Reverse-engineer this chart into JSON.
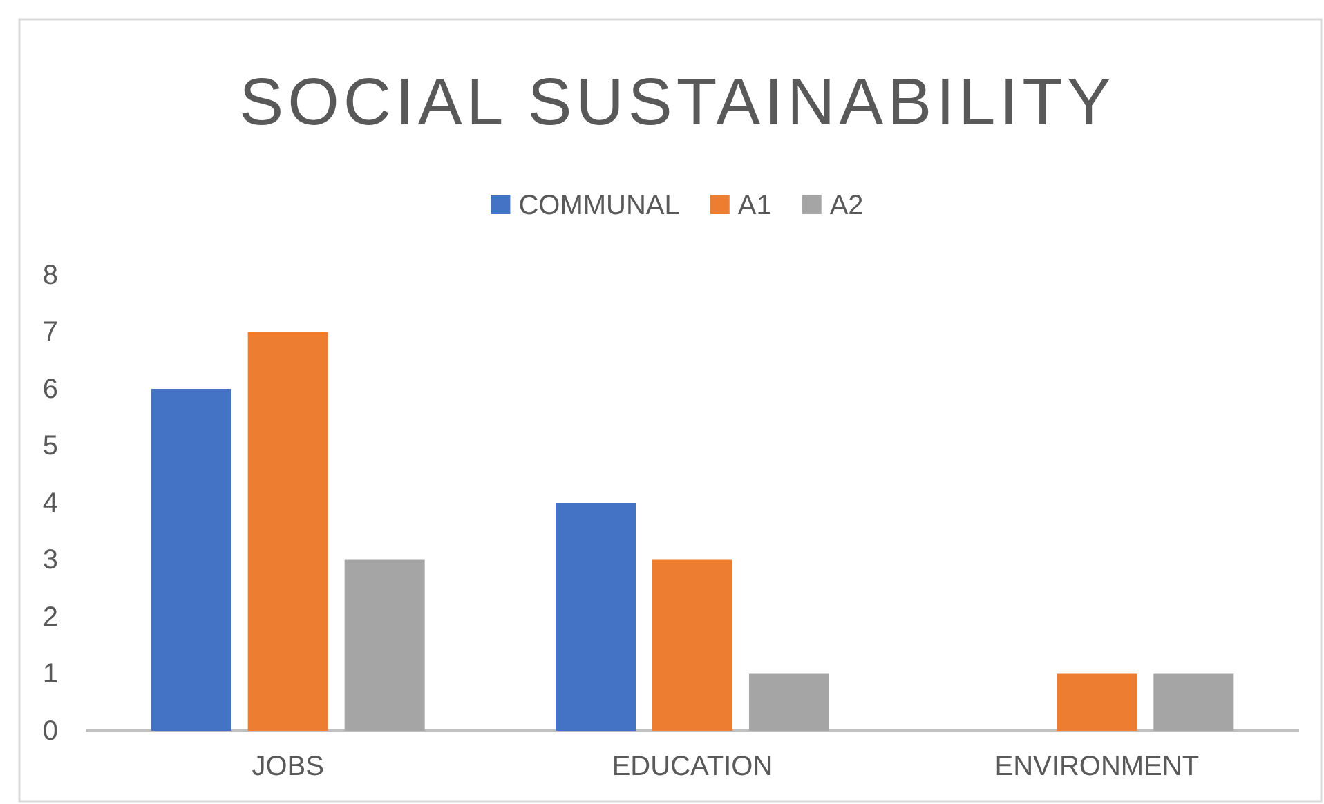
{
  "chart_data": {
    "type": "bar",
    "title": "SOCIAL SUSTAINABILITY",
    "categories": [
      "JOBS",
      "EDUCATION",
      "ENVIRONMENT"
    ],
    "series": [
      {
        "name": "COMMUNAL",
        "color": "#4472c4",
        "values": [
          6,
          4,
          0
        ]
      },
      {
        "name": "A1",
        "color": "#ed7d31",
        "values": [
          7,
          3,
          1
        ]
      },
      {
        "name": "A2",
        "color": "#a5a5a5",
        "values": [
          3,
          1,
          1
        ]
      }
    ],
    "ylim": [
      0,
      8
    ],
    "yticks": [
      0,
      1,
      2,
      3,
      4,
      5,
      6,
      7,
      8
    ],
    "grid": false,
    "legend": "top"
  }
}
